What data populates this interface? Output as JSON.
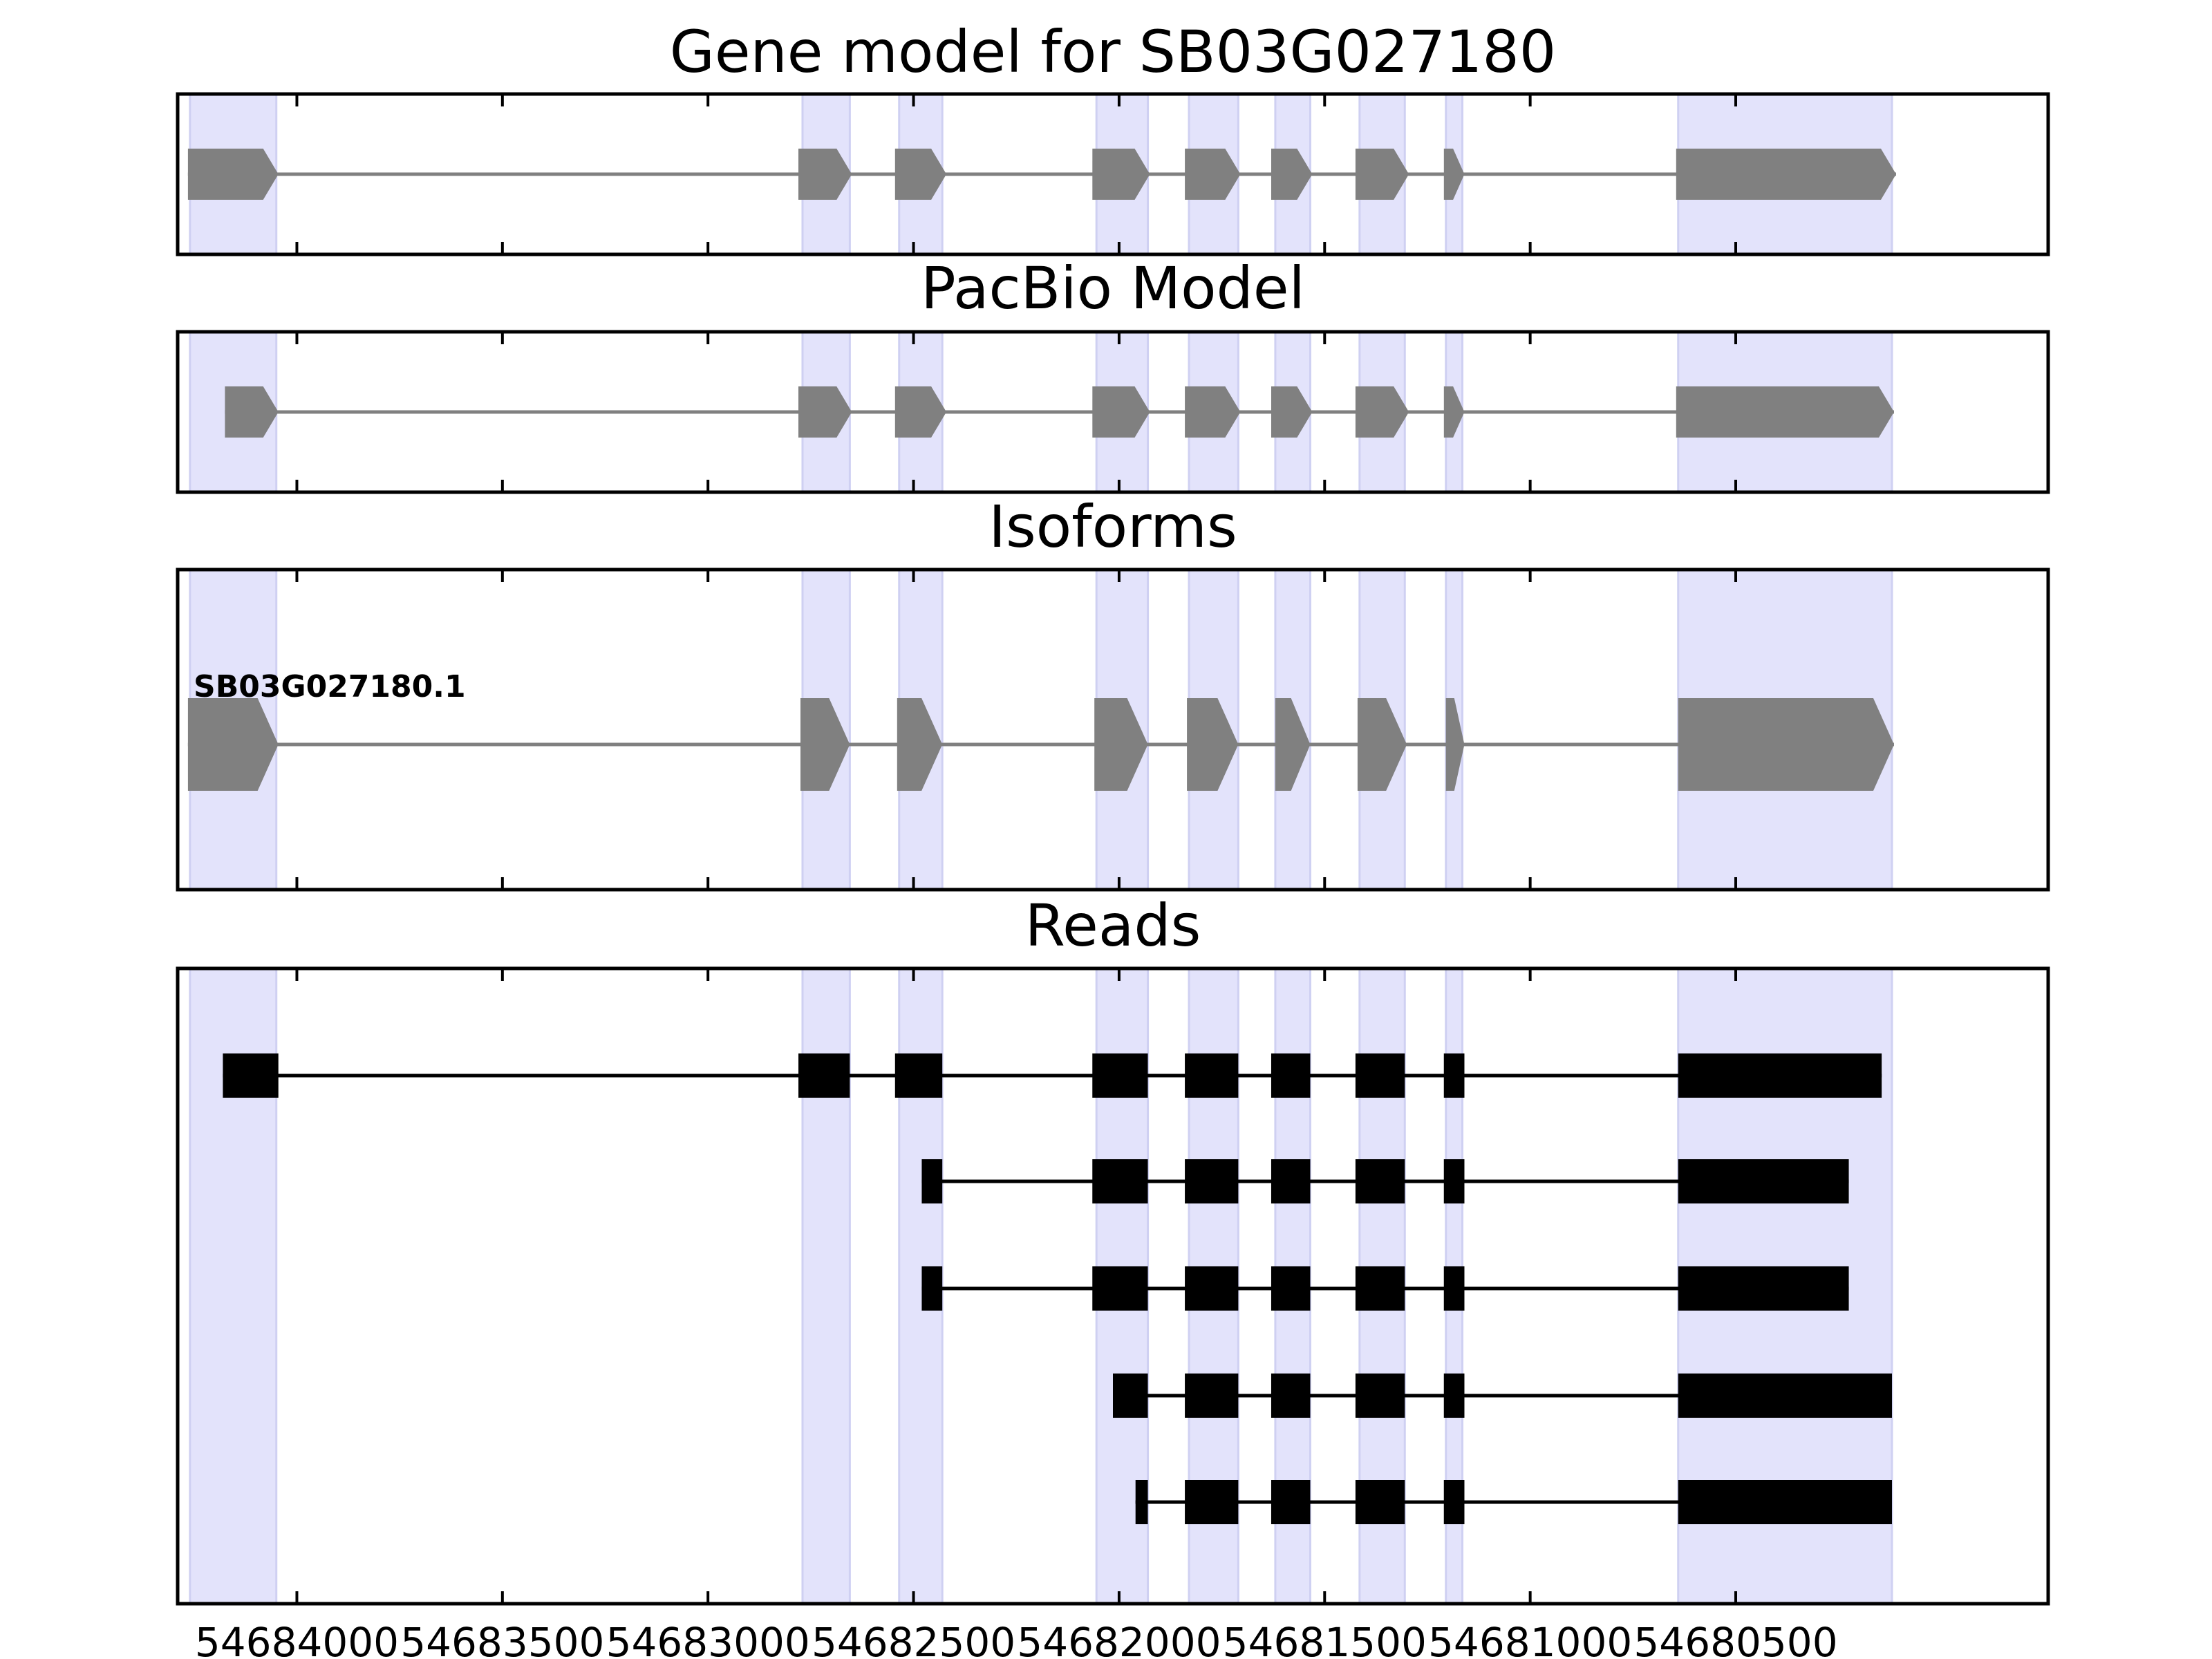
{
  "chart_data": {
    "type": "gene-model",
    "x_axis": {
      "reversed": true,
      "xlim": [
        54684290,
        54679740
      ],
      "ticks": [
        54684000,
        54683500,
        54683000,
        54682500,
        54682000,
        54681500,
        54681000,
        54680500
      ],
      "tick_labels": [
        "54684000",
        "54683500",
        "54683000",
        "54682500",
        "54682000",
        "54681500",
        "54681000",
        "54680500"
      ]
    },
    "exon_regions": [
      {
        "start": 54684260,
        "end": 54684050
      },
      {
        "start": 54682770,
        "end": 54682655
      },
      {
        "start": 54682535,
        "end": 54682430
      },
      {
        "start": 54682055,
        "end": 54681930
      },
      {
        "start": 54681830,
        "end": 54681710
      },
      {
        "start": 54681620,
        "end": 54681535
      },
      {
        "start": 54681415,
        "end": 54681305
      },
      {
        "start": 54681205,
        "end": 54681165
      },
      {
        "start": 54680640,
        "end": 54680120
      }
    ],
    "panels": [
      {
        "title": "Gene model for SB03G027180",
        "kind": "gene",
        "exons": [
          {
            "start": 54684265,
            "end": 54684045
          },
          {
            "start": 54682780,
            "end": 54682650
          },
          {
            "start": 54682545,
            "end": 54682420
          },
          {
            "start": 54682065,
            "end": 54681925
          },
          {
            "start": 54681840,
            "end": 54681705
          },
          {
            "start": 54681630,
            "end": 54681530
          },
          {
            "start": 54681425,
            "end": 54681295
          },
          {
            "start": 54681210,
            "end": 54681160
          },
          {
            "start": 54680645,
            "end": 54680110
          }
        ]
      },
      {
        "title": "PacBio Model",
        "kind": "gene",
        "exons": [
          {
            "start": 54684175,
            "end": 54684045
          },
          {
            "start": 54682780,
            "end": 54682650
          },
          {
            "start": 54682545,
            "end": 54682420
          },
          {
            "start": 54682065,
            "end": 54681925
          },
          {
            "start": 54681840,
            "end": 54681705
          },
          {
            "start": 54681630,
            "end": 54681530
          },
          {
            "start": 54681425,
            "end": 54681295
          },
          {
            "start": 54681210,
            "end": 54681160
          },
          {
            "start": 54680645,
            "end": 54680115
          }
        ]
      },
      {
        "title": "Isoforms",
        "kind": "isoform",
        "isoform_label": "SB03G027180.1",
        "exons": [
          {
            "start": 54684265,
            "end": 54684045
          },
          {
            "start": 54682775,
            "end": 54682655
          },
          {
            "start": 54682540,
            "end": 54682430
          },
          {
            "start": 54682060,
            "end": 54681930
          },
          {
            "start": 54681835,
            "end": 54681710
          },
          {
            "start": 54681620,
            "end": 54681535
          },
          {
            "start": 54681420,
            "end": 54681300
          },
          {
            "start": 54681205,
            "end": 54681160
          },
          {
            "start": 54680640,
            "end": 54680115
          }
        ]
      },
      {
        "title": "Reads",
        "kind": "reads",
        "reads": [
          [
            {
              "start": 54684180,
              "end": 54684045
            },
            {
              "start": 54682780,
              "end": 54682655
            },
            {
              "start": 54682545,
              "end": 54682430
            },
            {
              "start": 54682065,
              "end": 54681930
            },
            {
              "start": 54681840,
              "end": 54681710
            },
            {
              "start": 54681630,
              "end": 54681535
            },
            {
              "start": 54681425,
              "end": 54681305
            },
            {
              "start": 54681210,
              "end": 54681160
            },
            {
              "start": 54680640,
              "end": 54680145
            }
          ],
          [
            {
              "start": 54682480,
              "end": 54682430
            },
            {
              "start": 54682065,
              "end": 54681930
            },
            {
              "start": 54681840,
              "end": 54681710
            },
            {
              "start": 54681630,
              "end": 54681535
            },
            {
              "start": 54681425,
              "end": 54681305
            },
            {
              "start": 54681210,
              "end": 54681160
            },
            {
              "start": 54680640,
              "end": 54680225
            }
          ],
          [
            {
              "start": 54682480,
              "end": 54682430
            },
            {
              "start": 54682065,
              "end": 54681930
            },
            {
              "start": 54681840,
              "end": 54681710
            },
            {
              "start": 54681630,
              "end": 54681535
            },
            {
              "start": 54681425,
              "end": 54681305
            },
            {
              "start": 54681210,
              "end": 54681160
            },
            {
              "start": 54680640,
              "end": 54680225
            }
          ],
          [
            {
              "start": 54682015,
              "end": 54681930
            },
            {
              "start": 54681840,
              "end": 54681710
            },
            {
              "start": 54681630,
              "end": 54681535
            },
            {
              "start": 54681425,
              "end": 54681305
            },
            {
              "start": 54681210,
              "end": 54681160
            },
            {
              "start": 54680640,
              "end": 54680120
            }
          ],
          [
            {
              "start": 54681960,
              "end": 54681930
            },
            {
              "start": 54681840,
              "end": 54681710
            },
            {
              "start": 54681630,
              "end": 54681535
            },
            {
              "start": 54681425,
              "end": 54681305
            },
            {
              "start": 54681210,
              "end": 54681160
            },
            {
              "start": 54680640,
              "end": 54680120
            }
          ]
        ]
      }
    ],
    "colors": {
      "exon_region": "#e3e3fb",
      "exon_region_edge": "#cfd0f2",
      "gene_feature": "#808080",
      "read_feature": "#000000",
      "frame": "#000000"
    }
  }
}
